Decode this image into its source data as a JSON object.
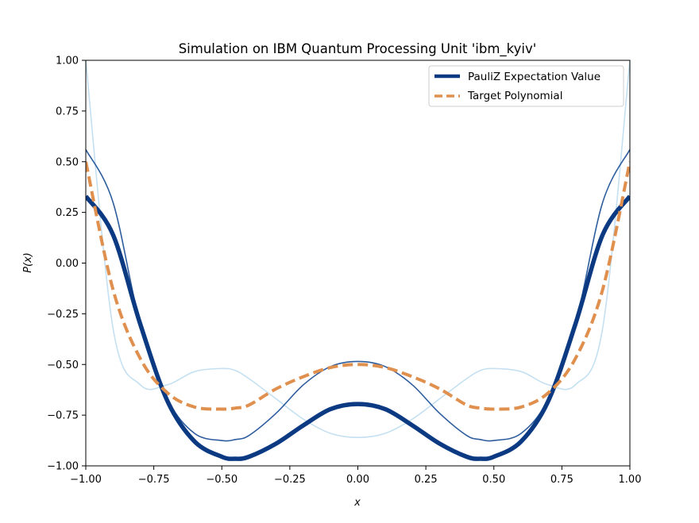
{
  "chart_data": {
    "type": "line",
    "title": "Simulation on IBM Quantum Processing Unit 'ibm_kyiv'",
    "xlabel": "x",
    "ylabel": "P(x)",
    "xlim": [
      -1.0,
      1.0
    ],
    "ylim": [
      -1.0,
      1.0
    ],
    "xticks": [
      "−1.00",
      "−0.75",
      "−0.50",
      "−0.25",
      "0.00",
      "0.25",
      "0.50",
      "0.75",
      "1.00"
    ],
    "yticks": [
      "−1.00",
      "−0.75",
      "−0.50",
      "−0.25",
      "0.00",
      "0.25",
      "0.50",
      "0.75",
      "1.00"
    ],
    "grid": false,
    "legend_position": "top-right",
    "x": [
      -1.0,
      -0.9,
      -0.8,
      -0.7,
      -0.6,
      -0.5,
      -0.45,
      -0.4,
      -0.3,
      -0.2,
      -0.1,
      0.0,
      0.1,
      0.2,
      0.3,
      0.4,
      0.45,
      0.5,
      0.6,
      0.7,
      0.8,
      0.9,
      1.0
    ],
    "series": [
      {
        "name": "PauliZ Expectation Value",
        "color": "#0b3a82",
        "style": "solid-thick",
        "values": [
          0.33,
          0.14,
          -0.3,
          -0.68,
          -0.88,
          -0.955,
          -0.965,
          -0.955,
          -0.89,
          -0.8,
          -0.72,
          -0.695,
          -0.72,
          -0.8,
          -0.89,
          -0.955,
          -0.965,
          -0.955,
          -0.88,
          -0.68,
          -0.3,
          0.14,
          0.33
        ]
      },
      {
        "name": "Target Polynomial",
        "color": "#e0904e",
        "style": "dashed",
        "values": [
          0.5,
          -0.13,
          -0.47,
          -0.64,
          -0.71,
          -0.72,
          -0.715,
          -0.7,
          -0.62,
          -0.56,
          -0.515,
          -0.5,
          -0.515,
          -0.56,
          -0.62,
          -0.7,
          -0.715,
          -0.72,
          -0.71,
          -0.64,
          -0.47,
          -0.13,
          0.5
        ]
      },
      {
        "color": "#2e5d9e",
        "style": "solid-thin",
        "values": [
          0.56,
          0.3,
          -0.3,
          -0.67,
          -0.84,
          -0.875,
          -0.87,
          -0.85,
          -0.74,
          -0.6,
          -0.51,
          -0.485,
          -0.51,
          -0.6,
          -0.74,
          -0.85,
          -0.87,
          -0.875,
          -0.84,
          -0.67,
          -0.3,
          0.3,
          0.56
        ]
      },
      {
        "color": "#c4e0f1",
        "style": "solid-thin",
        "values": [
          1.0,
          -0.32,
          -0.6,
          -0.6,
          -0.535,
          -0.52,
          -0.53,
          -0.57,
          -0.67,
          -0.77,
          -0.84,
          -0.86,
          -0.84,
          -0.77,
          -0.67,
          -0.57,
          -0.53,
          -0.52,
          -0.535,
          -0.6,
          -0.6,
          -0.32,
          1.0
        ]
      }
    ]
  }
}
